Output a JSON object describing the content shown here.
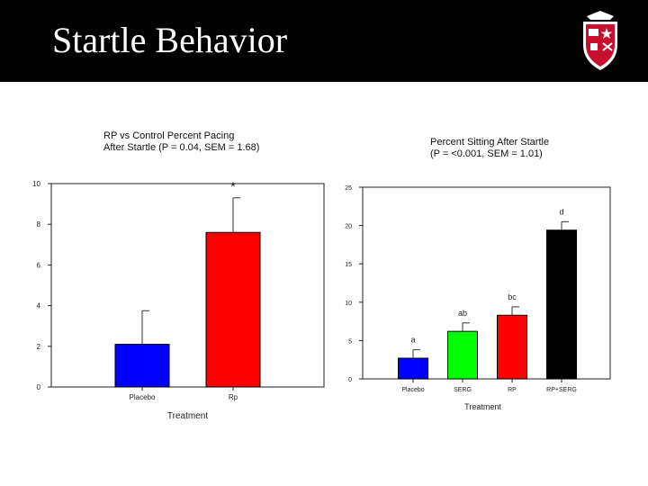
{
  "slide": {
    "title": "Startle Behavior"
  },
  "colors": {
    "header_bg": "#000000",
    "blue": "#0000ff",
    "green": "#00ff00",
    "red": "#ff0000",
    "black": "#000000"
  },
  "chart_data": [
    {
      "type": "bar",
      "title_lines": [
        "RP vs Control Percent Pacing",
        "After Startle (P = 0.04, SEM = 1.68)"
      ],
      "xlabel": "Treatment",
      "ylabel": "",
      "categories": [
        "Placebo",
        "Rp"
      ],
      "values": [
        2.1,
        7.6
      ],
      "errors": [
        1.65,
        1.7
      ],
      "bar_colors": [
        "#0000ff",
        "#ff0000"
      ],
      "annotations": [
        "",
        "*"
      ],
      "ylim": [
        0,
        10
      ],
      "yticks": [
        "0",
        "2",
        "4",
        "6",
        "8",
        "10"
      ],
      "grid": false,
      "legend": "none"
    },
    {
      "type": "bar",
      "title_lines": [
        "Percent Sitting After Startle",
        "(P = <0.001, SEM = 1.01)"
      ],
      "xlabel": "Treatment",
      "ylabel": "",
      "categories": [
        "Placebo",
        "SERG",
        "RP",
        "RP+SERG"
      ],
      "values": [
        2.7,
        6.2,
        8.3,
        19.4
      ],
      "errors": [
        1.1,
        1.1,
        1.1,
        1.1
      ],
      "bar_colors": [
        "#0000ff",
        "#00ff00",
        "#ff0000",
        "#000000"
      ],
      "annotations": [
        "a",
        "ab",
        "bc",
        "d"
      ],
      "ylim": [
        0,
        25
      ],
      "yticks": [
        "0",
        "5",
        "10",
        "15",
        "20",
        "25"
      ],
      "grid": false,
      "legend": "none"
    }
  ]
}
